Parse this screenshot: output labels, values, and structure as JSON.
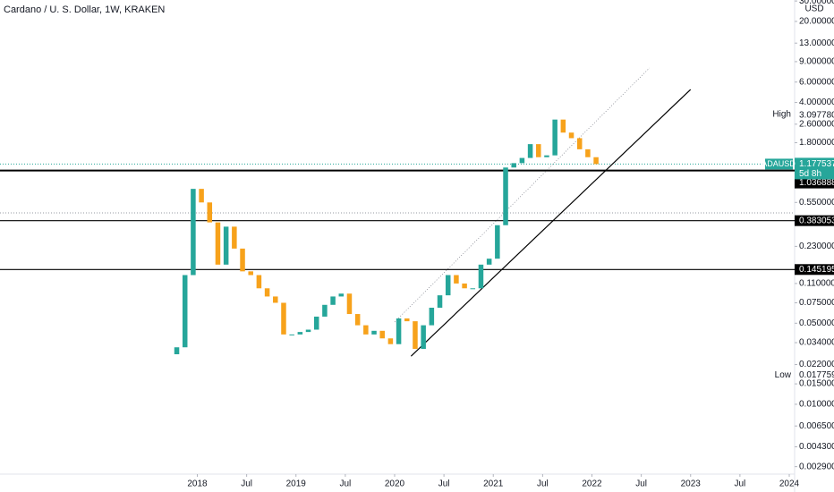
{
  "chart_data": {
    "type": "candlestick",
    "title": "Cardano / U. S. Dollar, 1W, KRAKEN",
    "currency": "USD",
    "log_scale": true,
    "up_color": "#26a69a",
    "down_color": "#f7a21b",
    "x": [
      "2017-10",
      "2017-11",
      "2017-12",
      "2018-01",
      "2018-02",
      "2018-03",
      "2018-04",
      "2018-05",
      "2018-06",
      "2018-07",
      "2018-08",
      "2018-09",
      "2018-10",
      "2018-11",
      "2018-12",
      "2019-01",
      "2019-02",
      "2019-03",
      "2019-04",
      "2019-05",
      "2019-06",
      "2019-07",
      "2019-08",
      "2019-09",
      "2019-10",
      "2019-11",
      "2019-12",
      "2020-01",
      "2020-02",
      "2020-03",
      "2020-04",
      "2020-05",
      "2020-06",
      "2020-07",
      "2020-08",
      "2020-09",
      "2020-10",
      "2020-11",
      "2020-12",
      "2021-01",
      "2021-02",
      "2021-03",
      "2021-04",
      "2021-05",
      "2021-06",
      "2021-07",
      "2021-08",
      "2021-09",
      "2021-10",
      "2021-11",
      "2021-12",
      "2022-01"
    ],
    "open": [
      0.027,
      0.031,
      0.13,
      0.72,
      0.55,
      0.37,
      0.16,
      0.34,
      0.22,
      0.14,
      0.13,
      0.1,
      0.085,
      0.075,
      0.04,
      0.04,
      0.042,
      0.044,
      0.057,
      0.072,
      0.085,
      0.09,
      0.06,
      0.048,
      0.04,
      0.043,
      0.037,
      0.033,
      0.055,
      0.052,
      0.03,
      0.048,
      0.068,
      0.087,
      0.13,
      0.11,
      0.1,
      0.1,
      0.16,
      0.18,
      0.35,
      1.1,
      1.2,
      1.33,
      1.75,
      1.35,
      1.4,
      2.85,
      2.2,
      1.97,
      1.58,
      1.35
    ],
    "high": {
      "value": 3.09778,
      "label": "3.097780"
    },
    "low": 0.017759,
    "close": [
      0.031,
      0.13,
      0.72,
      0.55,
      0.37,
      0.16,
      0.34,
      0.22,
      0.14,
      0.13,
      0.1,
      0.085,
      0.075,
      0.04,
      0.04,
      0.042,
      0.044,
      0.057,
      0.072,
      0.085,
      0.09,
      0.06,
      0.048,
      0.04,
      0.043,
      0.037,
      0.033,
      0.055,
      0.052,
      0.03,
      0.048,
      0.068,
      0.087,
      0.13,
      0.11,
      0.1,
      0.1,
      0.16,
      0.18,
      0.35,
      1.1,
      1.2,
      1.33,
      1.75,
      1.35,
      1.4,
      2.85,
      2.2,
      1.97,
      1.58,
      1.35,
      1.177537
    ],
    "xlim": [
      "2016-01",
      "2024-01"
    ],
    "ylim": [
      0.0025,
      30.6
    ],
    "xticks": [
      {
        "value": "2018-01",
        "label": "2018"
      },
      {
        "value": "2018-07",
        "label": "Jul"
      },
      {
        "value": "2019-01",
        "label": "2019"
      },
      {
        "value": "2019-07",
        "label": "Jul"
      },
      {
        "value": "2020-01",
        "label": "2020"
      },
      {
        "value": "2020-07",
        "label": "Jul"
      },
      {
        "value": "2021-01",
        "label": "2021"
      },
      {
        "value": "2021-07",
        "label": "Jul"
      },
      {
        "value": "2022-01",
        "label": "2022"
      },
      {
        "value": "2022-07",
        "label": "Jul"
      },
      {
        "value": "2023-01",
        "label": "2023"
      },
      {
        "value": "2023-07",
        "label": "Jul"
      },
      {
        "value": "2024-01",
        "label": "2024"
      }
    ],
    "yticks": [
      {
        "value": 30,
        "label": "30.000000"
      },
      {
        "value": 20,
        "label": "20.000000"
      },
      {
        "value": 13,
        "label": "13.000000"
      },
      {
        "value": 9,
        "label": "9.000000"
      },
      {
        "value": 6,
        "label": "6.000000"
      },
      {
        "value": 4,
        "label": "4.000000"
      },
      {
        "value": 2.6,
        "label": "2.600000"
      },
      {
        "value": 1.8,
        "label": "1.800000"
      },
      {
        "value": 0.55,
        "label": "0.550000"
      },
      {
        "value": 0.23,
        "label": "0.230000"
      },
      {
        "value": 0.11,
        "label": "0.110000"
      },
      {
        "value": 0.075,
        "label": "0.075000"
      },
      {
        "value": 0.05,
        "label": "0.050000"
      },
      {
        "value": 0.034,
        "label": "0.034000"
      },
      {
        "value": 0.022,
        "label": "0.022000"
      },
      {
        "value": 0.015,
        "label": "0.015000"
      },
      {
        "value": 0.01,
        "label": "0.010000"
      },
      {
        "value": 0.0065,
        "label": "0.006500"
      },
      {
        "value": 0.0043,
        "label": "0.004300"
      },
      {
        "value": 0.0029,
        "label": "0.002900"
      }
    ],
    "levels": [
      {
        "value": 1.036888,
        "color": "#000000"
      },
      {
        "value": 0.383053,
        "color": "#000000"
      },
      {
        "value": 0.145195,
        "color": "#000000"
      }
    ],
    "dotted_levels": [
      0.447
    ],
    "trendlines": [
      {
        "style": "solid",
        "points": [
          [
            "2020-03",
            0.026
          ],
          [
            "2023-01",
            5.18
          ]
        ]
      },
      {
        "style": "dotted",
        "points": [
          [
            "2020-01",
            0.0512
          ],
          [
            "2022-08",
            7.94
          ]
        ]
      }
    ],
    "symbol": "ADAUSD",
    "last_price": 1.177537,
    "countdown": "5d 8h",
    "high_label": "High",
    "low_label": "Low"
  }
}
